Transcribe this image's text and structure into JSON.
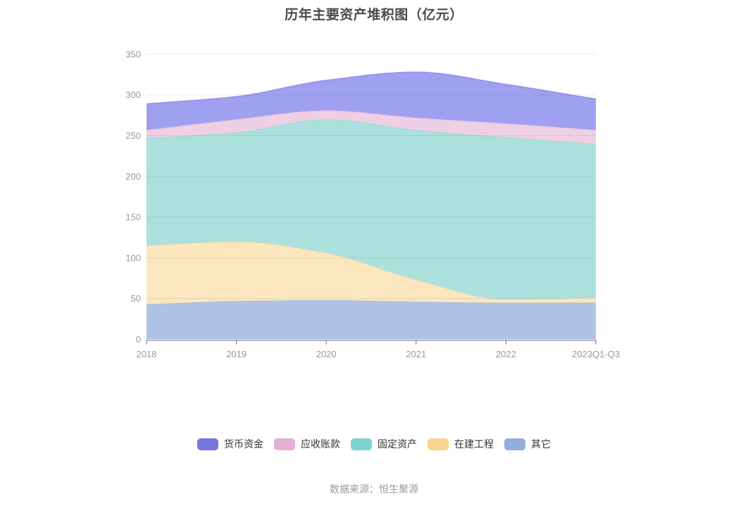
{
  "title": "历年主要资产堆积图（亿元）",
  "footer": "数据来源：恒生聚源",
  "style": {
    "title_color": "#4a4a4a",
    "legend_text": "#333333",
    "footer_color": "#999999",
    "axis_label_color": "#999999",
    "axis_line_color": "#6E7079",
    "grid_line_color": "#4664B4",
    "background": "#ffffff"
  },
  "chart_data": {
    "type": "area",
    "stacked": true,
    "smooth": true,
    "title": "历年主要资产堆积图（亿元）",
    "categories": [
      "2018",
      "2019",
      "2020",
      "2021",
      "2022",
      "2023Q1-Q3"
    ],
    "series": [
      {
        "name": "货币资金",
        "values": [
          32,
          28,
          37,
          56,
          48,
          38
        ],
        "color": "#7577DE",
        "fill": "#A0A0F0"
      },
      {
        "name": "应收账款",
        "values": [
          10,
          16,
          11,
          15,
          17,
          17
        ],
        "color": "#E5AFD6",
        "fill": "#EFCFE4"
      },
      {
        "name": "固定资产",
        "values": [
          132,
          134,
          164,
          184,
          199,
          189
        ],
        "color": "#7ED3CE",
        "fill": "#ABE0DC"
      },
      {
        "name": "在建工程",
        "values": [
          72,
          73,
          58,
          27,
          4,
          6
        ],
        "color": "#FAD48E",
        "fill": "#FBE6BE"
      },
      {
        "name": "其它",
        "values": [
          43,
          47,
          48,
          46,
          45,
          45
        ],
        "color": "#92AEDC",
        "fill": "#AEC3E6"
      }
    ],
    "stack_order_bottom_to_top": [
      "其它",
      "在建工程",
      "固定资产",
      "应收账款",
      "货币资金"
    ],
    "stack_totals": [
      289,
      298,
      318,
      328,
      313,
      295
    ],
    "xlabel": "",
    "ylabel": "",
    "ylim": [
      0,
      350
    ],
    "y_ticks": [
      0,
      50,
      100,
      150,
      200,
      250,
      300,
      350
    ],
    "grid": true,
    "legend_position": "bottom"
  }
}
